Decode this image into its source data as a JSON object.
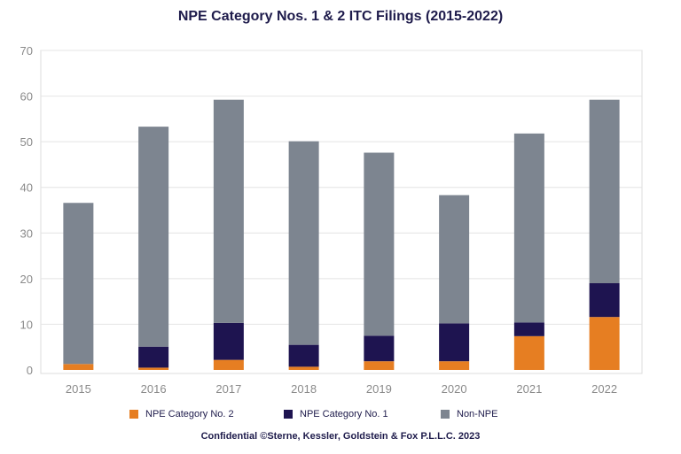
{
  "chart_data": {
    "type": "bar",
    "stacked": true,
    "title": "NPE Category Nos. 1 & 2 ITC Filings (2015-2022)",
    "categories": [
      "2015",
      "2016",
      "2017",
      "2018",
      "2019",
      "2020",
      "2021",
      "2022"
    ],
    "series": [
      {
        "name": "NPE Category No. 2",
        "color": "#e67e22",
        "values": [
          1.3,
          0.5,
          2.2,
          0.7,
          1.9,
          1.9,
          7.4,
          11.6
        ]
      },
      {
        "name": "NPE Category No. 1",
        "color": "#1e1450",
        "values": [
          0,
          4.6,
          8.1,
          4.8,
          5.6,
          8.3,
          3.0,
          7.4
        ]
      },
      {
        "name": "Non-NPE",
        "color": "#7d8590",
        "values": [
          35.3,
          48.2,
          48.9,
          44.6,
          40.1,
          28.1,
          41.4,
          40.2
        ]
      }
    ],
    "ylim": [
      0,
      70
    ],
    "yticks": [
      "0",
      "10",
      "20",
      "30",
      "40",
      "50",
      "60",
      "70"
    ],
    "grid": true,
    "legend_position": "bottom"
  },
  "footer": "Confidential ©Sterne, Kessler, Goldstein & Fox P.L.L.C. 2023"
}
